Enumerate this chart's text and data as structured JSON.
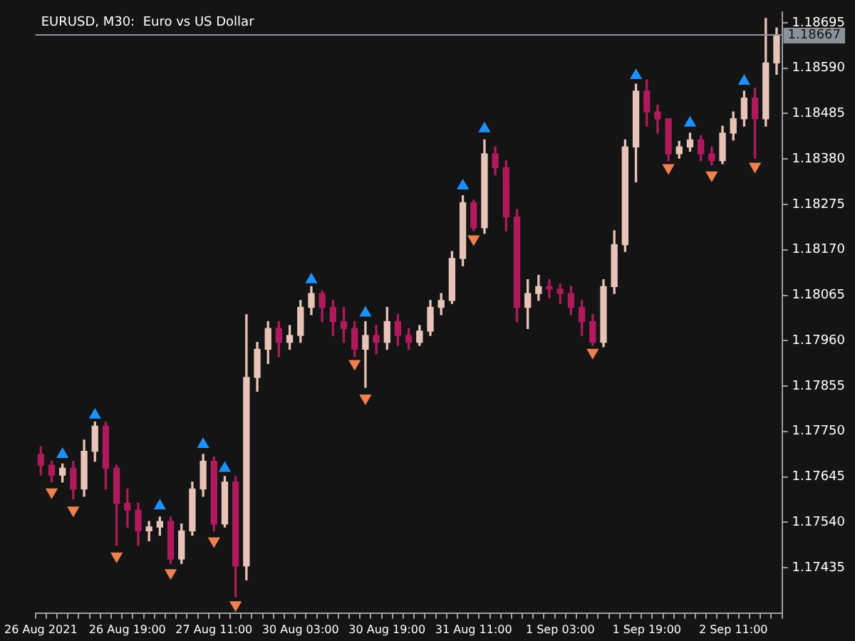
{
  "chart_data": {
    "type": "candlestick",
    "title": "EURUSD, M30:  Euro vs US Dollar",
    "categories": [
      "26 Aug 2021",
      null,
      null,
      null,
      null,
      null,
      null,
      null,
      "26 Aug 19:00",
      null,
      null,
      null,
      null,
      null,
      null,
      null,
      "27 Aug 11:00",
      null,
      null,
      null,
      null,
      null,
      null,
      null,
      "30 Aug 03:00",
      null,
      null,
      null,
      null,
      null,
      null,
      null,
      "30 Aug 19:00",
      null,
      null,
      null,
      null,
      null,
      null,
      null,
      "31 Aug 11:00",
      null,
      null,
      null,
      null,
      null,
      null,
      null,
      "1 Sep 03:00",
      null,
      null,
      null,
      null,
      null,
      null,
      null,
      "1 Sep 19:00",
      null,
      null,
      null,
      null,
      null,
      null,
      null,
      "2 Sep 11:00",
      null,
      null,
      null,
      null
    ],
    "ohlc": [
      [
        1.17697,
        1.17714,
        1.17649,
        1.17672
      ],
      [
        1.17672,
        1.17681,
        1.17633,
        1.17649
      ],
      [
        1.17649,
        1.17675,
        1.17633,
        1.17665
      ],
      [
        1.17665,
        1.17681,
        1.17594,
        1.17617
      ],
      [
        1.17617,
        1.1773,
        1.176,
        1.17704
      ],
      [
        1.17704,
        1.17772,
        1.17681,
        1.17762
      ],
      [
        1.17762,
        1.17772,
        1.17617,
        1.17665
      ],
      [
        1.17665,
        1.17672,
        1.17487,
        1.17584
      ],
      [
        1.17584,
        1.17617,
        1.17529,
        1.17568
      ],
      [
        1.17568,
        1.17584,
        1.17487,
        1.1752
      ],
      [
        1.1752,
        1.17542,
        1.17497,
        1.17529
      ],
      [
        1.17529,
        1.17552,
        1.1751,
        1.17542
      ],
      [
        1.17542,
        1.17552,
        1.17445,
        1.17455
      ],
      [
        1.17455,
        1.17536,
        1.17445,
        1.1752
      ],
      [
        1.1752,
        1.17633,
        1.1751,
        1.17617
      ],
      [
        1.17617,
        1.17697,
        1.176,
        1.17681
      ],
      [
        1.17681,
        1.17691,
        1.1752,
        1.17536
      ],
      [
        1.17536,
        1.17646,
        1.17529,
        1.17633
      ],
      [
        1.17633,
        1.17646,
        1.17368,
        1.17439
      ],
      [
        1.17439,
        1.1802,
        1.17407,
        1.17875
      ],
      [
        1.17875,
        1.17956,
        1.17843,
        1.1794
      ],
      [
        1.1794,
        1.18004,
        1.17907,
        1.17988
      ],
      [
        1.17988,
        1.18004,
        1.17923,
        1.17956
      ],
      [
        1.17956,
        1.17995,
        1.1794,
        1.17972
      ],
      [
        1.17972,
        1.18053,
        1.17956,
        1.18037
      ],
      [
        1.18037,
        1.18085,
        1.1802,
        1.18069
      ],
      [
        1.18069,
        1.18075,
        1.18004,
        1.18037
      ],
      [
        1.18037,
        1.18053,
        1.17972,
        1.18004
      ],
      [
        1.18004,
        1.18037,
        1.17956,
        1.17988
      ],
      [
        1.17988,
        1.18004,
        1.17923,
        1.1794
      ],
      [
        1.1794,
        1.18004,
        1.17852,
        1.17972
      ],
      [
        1.17972,
        1.17995,
        1.1793,
        1.17956
      ],
      [
        1.17956,
        1.18037,
        1.1794,
        1.18004
      ],
      [
        1.18004,
        1.1802,
        1.17949,
        1.17972
      ],
      [
        1.17972,
        1.17988,
        1.1794,
        1.17956
      ],
      [
        1.17956,
        1.17995,
        1.17949,
        1.17982
      ],
      [
        1.17982,
        1.18053,
        1.17972,
        1.18037
      ],
      [
        1.18037,
        1.18069,
        1.1802,
        1.18053
      ],
      [
        1.18053,
        1.18166,
        1.18046,
        1.1815
      ],
      [
        1.1815,
        1.18295,
        1.18133,
        1.18279
      ],
      [
        1.18279,
        1.18285,
        1.18214,
        1.18221
      ],
      [
        1.18221,
        1.18424,
        1.18208,
        1.18392
      ],
      [
        1.18392,
        1.18408,
        1.18343,
        1.1836
      ],
      [
        1.1836,
        1.18376,
        1.18214,
        1.18246
      ],
      [
        1.18246,
        1.18263,
        1.18004,
        1.18037
      ],
      [
        1.18037,
        1.18101,
        1.17988,
        1.18069
      ],
      [
        1.18069,
        1.18111,
        1.18053,
        1.18085
      ],
      [
        1.18085,
        1.18101,
        1.18059,
        1.18079
      ],
      [
        1.18079,
        1.18091,
        1.18046,
        1.18069
      ],
      [
        1.18069,
        1.18085,
        1.1802,
        1.18037
      ],
      [
        1.18037,
        1.18053,
        1.17972,
        1.18004
      ],
      [
        1.18004,
        1.1802,
        1.17949,
        1.17956
      ],
      [
        1.17956,
        1.18101,
        1.17946,
        1.18085
      ],
      [
        1.18085,
        1.18214,
        1.18069,
        1.18182
      ],
      [
        1.18182,
        1.18424,
        1.18166,
        1.18408
      ],
      [
        1.18408,
        1.18553,
        1.18327,
        1.18537
      ],
      [
        1.18537,
        1.18563,
        1.18456,
        1.18489
      ],
      [
        1.18489,
        1.18505,
        1.1844,
        1.18473
      ],
      [
        1.18473,
        1.18473,
        1.18376,
        1.18392
      ],
      [
        1.18392,
        1.18421,
        1.18382,
        1.18408
      ],
      [
        1.18408,
        1.1844,
        1.18398,
        1.18424
      ],
      [
        1.18424,
        1.18434,
        1.18376,
        1.18392
      ],
      [
        1.18392,
        1.18408,
        1.18366,
        1.18376
      ],
      [
        1.18376,
        1.18456,
        1.18369,
        1.1844
      ],
      [
        1.1844,
        1.18489,
        1.18424,
        1.18473
      ],
      [
        1.18473,
        1.18537,
        1.18456,
        1.18521
      ],
      [
        1.18521,
        1.18544,
        1.18382,
        1.18473
      ],
      [
        1.18473,
        1.18705,
        1.18456,
        1.18602
      ],
      [
        1.18602,
        1.18683,
        1.18576,
        1.18667
      ]
    ],
    "colors": [
      "#b01a5c",
      "#b01a5c",
      "#e8c4b8",
      "#b01a5c",
      "#e8c4b8",
      "#e8c4b8",
      "#b01a5c",
      "#b01a5c",
      "#b01a5c",
      "#b01a5c",
      "#e8c4b8",
      "#e8c4b8",
      "#b01a5c",
      "#e8c4b8",
      "#e8c4b8",
      "#e8c4b8",
      "#b01a5c",
      "#e8c4b8",
      "#b01a5c",
      "#e8c4b8",
      "#e8c4b8",
      "#e8c4b8",
      "#b01a5c",
      "#e8c4b8",
      "#e8c4b8",
      "#e8c4b8",
      "#b01a5c",
      "#b01a5c",
      "#b01a5c",
      "#b01a5c",
      "#e8c4b8",
      "#b01a5c",
      "#e8c4b8",
      "#b01a5c",
      "#b01a5c",
      "#e8c4b8",
      "#e8c4b8",
      "#e8c4b8",
      "#e8c4b8",
      "#e8c4b8",
      "#b01a5c",
      "#e8c4b8",
      "#b01a5c",
      "#b01a5c",
      "#b01a5c",
      "#e8c4b8",
      "#e8c4b8",
      "#b01a5c",
      "#b01a5c",
      "#b01a5c",
      "#b01a5c",
      "#b01a5c",
      "#e8c4b8",
      "#e8c4b8",
      "#e8c4b8",
      "#e8c4b8",
      "#b01a5c",
      "#b01a5c",
      "#b01a5c",
      "#e8c4b8",
      "#e8c4b8",
      "#b01a5c",
      "#b01a5c",
      "#e8c4b8",
      "#e8c4b8",
      "#e8c4b8",
      "#b01a5c",
      "#e8c4b8",
      "#e8c4b8"
    ],
    "series": [
      {
        "type": "scatter",
        "color": "#1e90ff",
        "marker": "triangle",
        "values": [
          null,
          null,
          1.17697,
          null,
          null,
          1.17788,
          null,
          null,
          null,
          null,
          null,
          1.17578,
          null,
          null,
          null,
          1.1772,
          null,
          1.17665,
          null,
          null,
          null,
          null,
          null,
          null,
          null,
          1.18101,
          null,
          null,
          null,
          null,
          1.18024,
          null,
          null,
          null,
          null,
          null,
          null,
          null,
          null,
          1.18318,
          null,
          1.1845,
          null,
          null,
          null,
          null,
          null,
          null,
          null,
          null,
          null,
          null,
          null,
          null,
          null,
          1.18573,
          null,
          null,
          null,
          null,
          1.18463,
          null,
          null,
          null,
          null,
          1.1856,
          null,
          null,
          null
        ]
      },
      {
        "type": "scatter",
        "color": "#f08050",
        "marker": "triangle",
        "values": [
          null,
          1.1761,
          null,
          1.17568,
          null,
          null,
          null,
          1.17462,
          null,
          null,
          null,
          null,
          1.17423,
          null,
          null,
          null,
          1.17497,
          null,
          1.17349,
          null,
          null,
          null,
          null,
          null,
          null,
          null,
          null,
          null,
          null,
          1.17907,
          1.17827,
          null,
          null,
          null,
          null,
          null,
          null,
          null,
          null,
          null,
          1.18195,
          null,
          null,
          null,
          null,
          null,
          null,
          null,
          null,
          null,
          null,
          1.17933,
          null,
          null,
          null,
          null,
          null,
          null,
          1.1836,
          null,
          null,
          null,
          1.18343,
          null,
          null,
          null,
          1.18363,
          null,
          null
        ]
      }
    ],
    "ylim": [
      1.1733,
      1.1872
    ],
    "yticks": [
      1.17435,
      {
        "value": 1.1754,
        "label": "1.17540"
      },
      1.17645,
      {
        "value": 1.1775,
        "label": "1.17750"
      },
      1.17855,
      {
        "value": 1.1796,
        "label": "1.17960"
      },
      1.18065,
      {
        "value": 1.1817,
        "label": "1.18170"
      },
      1.18275,
      {
        "value": 1.1838,
        "label": "1.18380"
      },
      1.18485,
      {
        "value": 1.1859,
        "label": "1.18590"
      },
      1.18695
    ],
    "ref_lines": [
      {
        "axis": "y",
        "value": 1.18667,
        "label": "1.18667",
        "color": "#8a939c"
      }
    ],
    "grid": false,
    "legend": false
  }
}
